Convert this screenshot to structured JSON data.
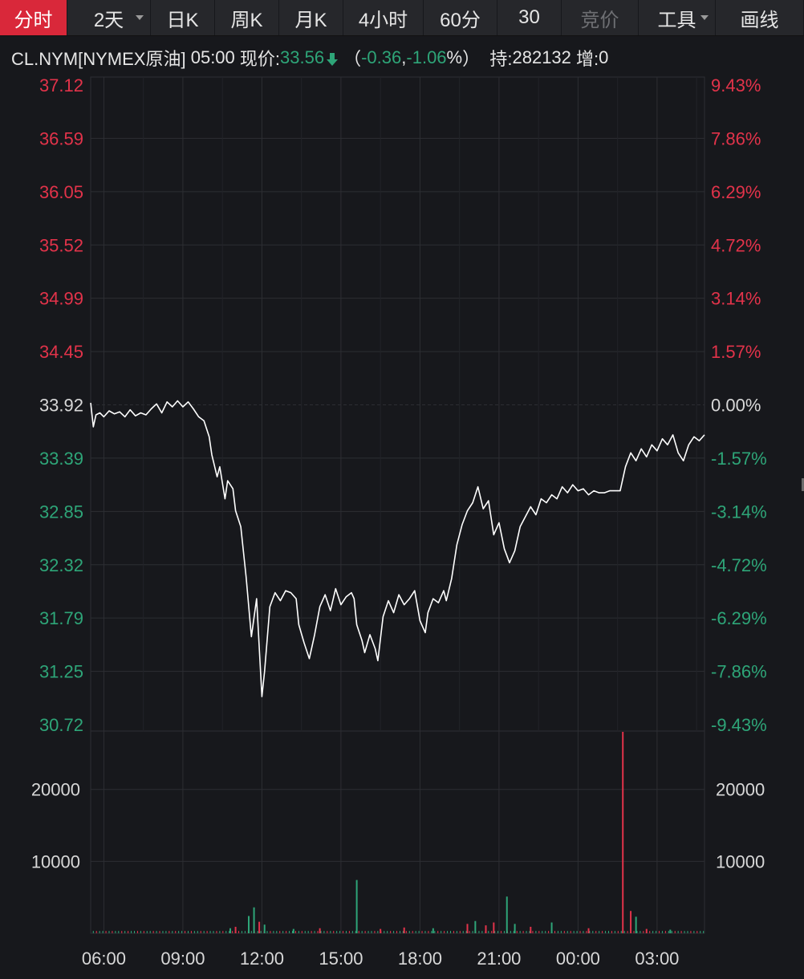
{
  "tabs": [
    {
      "label": "分时",
      "state": "active",
      "w": 84
    },
    {
      "label": "2天",
      "state": "normal",
      "w": 104,
      "dropdown": true
    },
    {
      "label": "日K",
      "state": "normal",
      "w": 80
    },
    {
      "label": "周K",
      "state": "normal",
      "w": 80
    },
    {
      "label": "月K",
      "state": "normal",
      "w": 80
    },
    {
      "label": "4小时",
      "state": "normal",
      "w": 100
    },
    {
      "label": "60分",
      "state": "normal",
      "w": 92
    },
    {
      "label": "30",
      "state": "normal",
      "w": 80
    },
    {
      "label": "竞价",
      "state": "disabled",
      "w": 96
    },
    {
      "label": "工具",
      "state": "normal",
      "w": 96,
      "dropdown": true
    },
    {
      "label": "画线",
      "state": "normal",
      "w": 110
    }
  ],
  "info": {
    "symbol": "CL.NYM[NYMEX原油]",
    "time": "05:00",
    "price_label": "现价:",
    "price": "33.56",
    "change_open": "（",
    "change": "-0.36",
    "sep": ", ",
    "change_pct": "-1.06",
    "pct_sign": "%",
    "change_close": "）",
    "oi_label": "持:",
    "oi": "282132",
    "inc_label": "增:",
    "inc": "0"
  },
  "colors": {
    "up": "#e2334a",
    "down": "#2ea578",
    "line": "#ffffff",
    "grid": "#2d2e33",
    "bg": "#17181c"
  },
  "chart_data": {
    "type": "line",
    "symbol": "CL.NYM",
    "prev_close": 33.92,
    "price_axis": {
      "ticks": [
        "37.12",
        "36.59",
        "36.05",
        "35.52",
        "34.99",
        "34.45",
        "33.92",
        "33.39",
        "32.85",
        "32.32",
        "31.79",
        "31.25",
        "30.72"
      ],
      "pct_ticks": [
        "9.43%",
        "7.86%",
        "6.29%",
        "4.72%",
        "3.14%",
        "1.57%",
        "0.00%",
        "-1.57%",
        "-3.14%",
        "-4.72%",
        "-6.29%",
        "-7.86%",
        "-9.43%"
      ],
      "ylim": [
        30.72,
        37.12
      ]
    },
    "volume_axis": {
      "ticks": [
        "20000",
        "10000"
      ],
      "ylim": [
        0,
        28000
      ]
    },
    "x_ticks": [
      "06:00",
      "09:00",
      "12:00",
      "15:00",
      "18:00",
      "21:00",
      "00:00",
      "03:00"
    ],
    "x_hours_range": [
      5.5,
      28.8
    ],
    "price_series": [
      [
        5.5,
        33.94
      ],
      [
        5.6,
        33.7
      ],
      [
        5.7,
        33.82
      ],
      [
        5.85,
        33.84
      ],
      [
        6.0,
        33.8
      ],
      [
        6.2,
        33.86
      ],
      [
        6.4,
        33.83
      ],
      [
        6.6,
        33.85
      ],
      [
        6.8,
        33.8
      ],
      [
        7.0,
        33.87
      ],
      [
        7.2,
        33.81
      ],
      [
        7.4,
        33.84
      ],
      [
        7.6,
        33.82
      ],
      [
        7.8,
        33.88
      ],
      [
        8.0,
        33.93
      ],
      [
        8.2,
        33.84
      ],
      [
        8.4,
        33.95
      ],
      [
        8.6,
        33.9
      ],
      [
        8.8,
        33.96
      ],
      [
        9.0,
        33.9
      ],
      [
        9.2,
        33.95
      ],
      [
        9.4,
        33.88
      ],
      [
        9.6,
        33.8
      ],
      [
        9.8,
        33.76
      ],
      [
        10.0,
        33.6
      ],
      [
        10.1,
        33.42
      ],
      [
        10.3,
        33.2
      ],
      [
        10.4,
        33.3
      ],
      [
        10.6,
        32.98
      ],
      [
        10.7,
        33.16
      ],
      [
        10.9,
        33.08
      ],
      [
        11.0,
        32.86
      ],
      [
        11.2,
        32.7
      ],
      [
        11.4,
        32.2
      ],
      [
        11.6,
        31.6
      ],
      [
        11.8,
        31.98
      ],
      [
        12.0,
        31.0
      ],
      [
        12.1,
        31.25
      ],
      [
        12.3,
        31.9
      ],
      [
        12.5,
        32.04
      ],
      [
        12.7,
        31.96
      ],
      [
        12.9,
        32.06
      ],
      [
        13.1,
        32.04
      ],
      [
        13.3,
        31.98
      ],
      [
        13.4,
        31.72
      ],
      [
        13.6,
        31.54
      ],
      [
        13.8,
        31.38
      ],
      [
        14.0,
        31.62
      ],
      [
        14.2,
        31.9
      ],
      [
        14.4,
        32.02
      ],
      [
        14.6,
        31.86
      ],
      [
        14.8,
        32.08
      ],
      [
        15.0,
        31.92
      ],
      [
        15.2,
        32.0
      ],
      [
        15.4,
        32.04
      ],
      [
        15.5,
        31.98
      ],
      [
        15.6,
        31.72
      ],
      [
        15.8,
        31.56
      ],
      [
        15.9,
        31.44
      ],
      [
        16.1,
        31.62
      ],
      [
        16.3,
        31.48
      ],
      [
        16.4,
        31.36
      ],
      [
        16.6,
        31.8
      ],
      [
        16.8,
        31.96
      ],
      [
        17.0,
        31.84
      ],
      [
        17.2,
        32.02
      ],
      [
        17.4,
        31.92
      ],
      [
        17.6,
        31.98
      ],
      [
        17.8,
        32.06
      ],
      [
        18.0,
        31.76
      ],
      [
        18.2,
        31.64
      ],
      [
        18.3,
        31.84
      ],
      [
        18.5,
        31.98
      ],
      [
        18.7,
        31.94
      ],
      [
        18.9,
        32.06
      ],
      [
        19.0,
        31.96
      ],
      [
        19.2,
        32.18
      ],
      [
        19.4,
        32.52
      ],
      [
        19.6,
        32.72
      ],
      [
        19.8,
        32.86
      ],
      [
        20.0,
        32.94
      ],
      [
        20.2,
        33.1
      ],
      [
        20.4,
        32.88
      ],
      [
        20.6,
        32.96
      ],
      [
        20.8,
        32.62
      ],
      [
        21.0,
        32.74
      ],
      [
        21.2,
        32.48
      ],
      [
        21.4,
        32.34
      ],
      [
        21.6,
        32.46
      ],
      [
        21.8,
        32.7
      ],
      [
        22.0,
        32.8
      ],
      [
        22.2,
        32.9
      ],
      [
        22.4,
        32.82
      ],
      [
        22.6,
        32.98
      ],
      [
        22.8,
        32.94
      ],
      [
        23.0,
        33.02
      ],
      [
        23.2,
        32.98
      ],
      [
        23.4,
        33.1
      ],
      [
        23.6,
        33.04
      ],
      [
        23.8,
        33.12
      ],
      [
        24.0,
        33.06
      ],
      [
        24.2,
        33.08
      ],
      [
        24.4,
        33.02
      ],
      [
        24.6,
        33.06
      ],
      [
        24.8,
        33.04
      ],
      [
        25.0,
        33.04
      ],
      [
        25.2,
        33.06
      ],
      [
        25.6,
        33.06
      ],
      [
        25.8,
        33.3
      ],
      [
        26.0,
        33.44
      ],
      [
        26.2,
        33.36
      ],
      [
        26.4,
        33.48
      ],
      [
        26.6,
        33.4
      ],
      [
        26.8,
        33.52
      ],
      [
        27.0,
        33.46
      ],
      [
        27.2,
        33.58
      ],
      [
        27.4,
        33.52
      ],
      [
        27.6,
        33.62
      ],
      [
        27.8,
        33.44
      ],
      [
        28.0,
        33.36
      ],
      [
        28.2,
        33.52
      ],
      [
        28.4,
        33.6
      ],
      [
        28.6,
        33.56
      ],
      [
        28.8,
        33.62
      ]
    ],
    "volume_series": [
      {
        "x": 11.5,
        "v": 2400,
        "dir": "down"
      },
      {
        "x": 11.7,
        "v": 3600,
        "dir": "down"
      },
      {
        "x": 11.9,
        "v": 1600,
        "dir": "up"
      },
      {
        "x": 12.1,
        "v": 1200,
        "dir": "down"
      },
      {
        "x": 10.8,
        "v": 700,
        "dir": "down"
      },
      {
        "x": 11.0,
        "v": 900,
        "dir": "up"
      },
      {
        "x": 13.2,
        "v": 600,
        "dir": "down"
      },
      {
        "x": 14.2,
        "v": 700,
        "dir": "up"
      },
      {
        "x": 15.6,
        "v": 7400,
        "dir": "down"
      },
      {
        "x": 16.5,
        "v": 600,
        "dir": "up"
      },
      {
        "x": 17.4,
        "v": 800,
        "dir": "up"
      },
      {
        "x": 18.5,
        "v": 700,
        "dir": "down"
      },
      {
        "x": 19.8,
        "v": 1300,
        "dir": "up"
      },
      {
        "x": 20.1,
        "v": 1700,
        "dir": "down"
      },
      {
        "x": 20.5,
        "v": 1100,
        "dir": "up"
      },
      {
        "x": 20.8,
        "v": 1500,
        "dir": "up"
      },
      {
        "x": 21.3,
        "v": 5100,
        "dir": "down"
      },
      {
        "x": 21.6,
        "v": 1300,
        "dir": "down"
      },
      {
        "x": 22.2,
        "v": 900,
        "dir": "up"
      },
      {
        "x": 23.0,
        "v": 1500,
        "dir": "down"
      },
      {
        "x": 24.4,
        "v": 700,
        "dir": "up"
      },
      {
        "x": 25.7,
        "v": 28000,
        "dir": "up"
      },
      {
        "x": 26.0,
        "v": 3100,
        "dir": "up"
      },
      {
        "x": 26.2,
        "v": 2300,
        "dir": "down"
      },
      {
        "x": 26.6,
        "v": 600,
        "dir": "up"
      },
      {
        "x": 27.5,
        "v": 500,
        "dir": "down"
      }
    ]
  }
}
